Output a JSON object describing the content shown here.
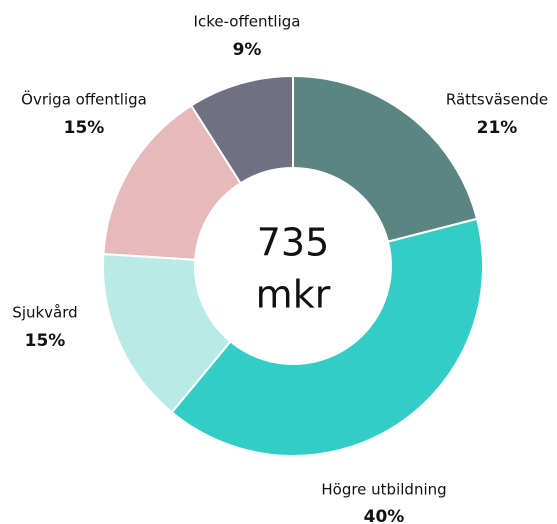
{
  "chart_data": {
    "type": "donut",
    "categories": [
      "Rättsväsende",
      "Högre utbildning",
      "Sjukvård",
      "Övriga offentliga",
      "Icke-offentliga"
    ],
    "values": [
      21,
      40,
      15,
      15,
      9
    ],
    "value_labels": [
      "21%",
      "40%",
      "15%",
      "15%",
      "9%"
    ],
    "colors": [
      "#5a8580",
      "#33cdc6",
      "#b8ebe6",
      "#e6babb",
      "#6f7083"
    ],
    "center_text": [
      "735",
      "mkr"
    ]
  }
}
